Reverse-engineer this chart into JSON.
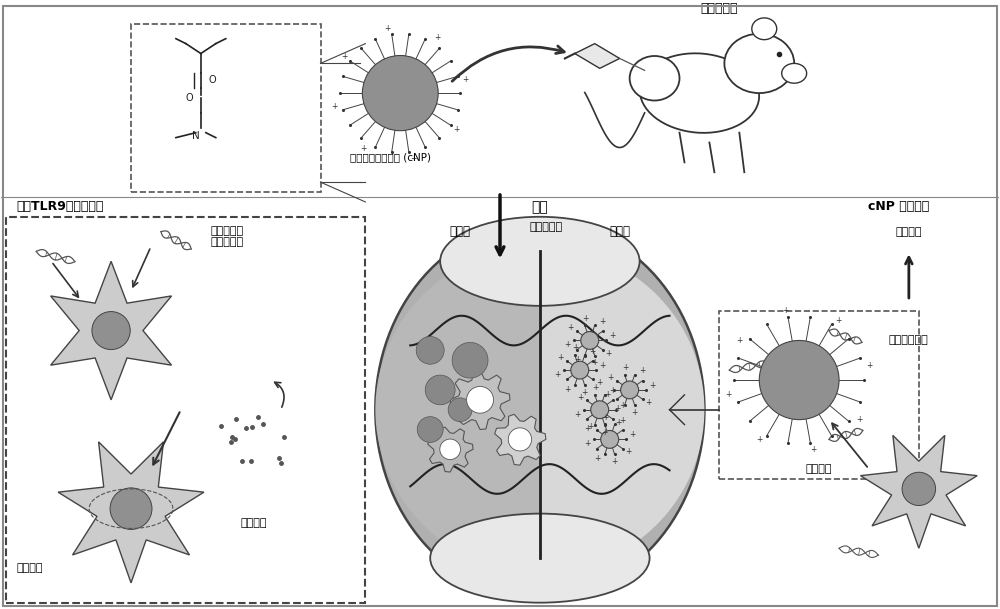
{
  "bg_color": "#ffffff",
  "fig_width": 10.0,
  "fig_height": 6.09,
  "labels": {
    "cnp_label": "阳离子聚合物胶束 (cNP)",
    "arthritis_model": "关节炎模型",
    "tlr9_title": "基于TLR9的免疫反应",
    "joint_title": "关节",
    "cnp_process_title": "cNP 治疗过程",
    "free_nucleic": "游离核酸或\n免疫复合物",
    "immune_cell": "免疫细胞",
    "cytokine": "细胞因子",
    "tail_injection": "尾静脉注射",
    "before_treatment": "治疗前",
    "after_treatment": "治疗后",
    "capture_nucleic": "捕抓核酸",
    "inflammation_down": "炎症因子下调",
    "remission": "病情缓解"
  }
}
